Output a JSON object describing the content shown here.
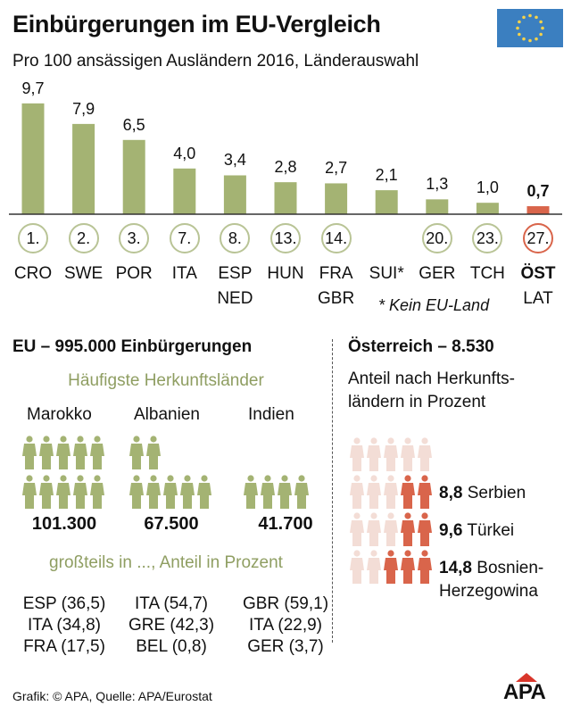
{
  "title": "Einbürgerungen im EU-Vergleich",
  "subtitle": "Pro 100 ansässigen Ausländern 2016, Länderauswahl",
  "flag_icon": "eu-flag-icon",
  "colors": {
    "bar": "#a4b373",
    "highlight": "#d9654b",
    "faded": "#f3ddd6",
    "rank_ring": "#b9c496"
  },
  "chart_data": {
    "type": "bar",
    "categories": [
      "CRO",
      "SWE",
      "POR",
      "ITA",
      "ESP NED",
      "HUN",
      "FRA GBR",
      "SUI*",
      "GER",
      "TCH",
      "ÖST LAT"
    ],
    "labels": [
      "9,7",
      "7,9",
      "6,5",
      "4,0",
      "3,4",
      "2,8",
      "2,7",
      "2,1",
      "1,3",
      "1,0",
      "0,7"
    ],
    "values": [
      9.7,
      7.9,
      6.5,
      4.0,
      3.4,
      2.8,
      2.7,
      2.1,
      1.3,
      1.0,
      0.7
    ],
    "ranks": [
      "1.",
      "2.",
      "3.",
      "7.",
      "8.",
      "13.",
      "14.",
      "",
      "20.",
      "23.",
      "27."
    ],
    "country_lines": [
      [
        "CRO"
      ],
      [
        "SWE"
      ],
      [
        "POR"
      ],
      [
        "ITA"
      ],
      [
        "ESP",
        "NED"
      ],
      [
        "HUN"
      ],
      [
        "FRA",
        "GBR"
      ],
      [
        "SUI*"
      ],
      [
        "GER"
      ],
      [
        "TCH"
      ],
      [
        "ÖST",
        "LAT"
      ]
    ],
    "highlight_index": 10,
    "footnote": "* Kein EU-Land"
  },
  "eu": {
    "heading": "EU – 995.000 Einbürgerungen",
    "subheading": "Häufigste Herkunftsländer",
    "origins": [
      {
        "name": "Marokko",
        "value": "101.300",
        "icons_rows": [
          5,
          5
        ],
        "destinations": [
          "ESP (36,5)",
          "ITA (34,8)",
          "FRA (17,5)"
        ]
      },
      {
        "name": "Albanien",
        "value": "67.500",
        "icons_rows": [
          2,
          5
        ],
        "destinations": [
          "ITA (54,7)",
          "GRE (42,3)",
          "BEL (0,8)"
        ]
      },
      {
        "name": "Indien",
        "value": "41.700",
        "icons_rows": [
          0,
          4
        ],
        "destinations": [
          "GBR (59,1)",
          "ITA (22,9)",
          "GER (3,7)"
        ]
      }
    ],
    "destinations_heading": "großteils in ..., Anteil in Prozent"
  },
  "austria": {
    "heading": "Österreich – 8.530",
    "subheading_lines": [
      "Anteil nach Herkunfts-",
      "ländern in Prozent"
    ],
    "rows": [
      {
        "red": 0
      },
      {
        "red": 2,
        "value": "8,8",
        "label": "Serbien"
      },
      {
        "red": 2,
        "value": "9,6",
        "label": "Türkei"
      },
      {
        "red": 3,
        "value": "14,8",
        "label": "Bosnien-",
        "label2": "Herzegowina"
      }
    ]
  },
  "footer": {
    "source": "Grafik: © APA, Quelle: APA/Eurostat",
    "logo": "APA"
  }
}
